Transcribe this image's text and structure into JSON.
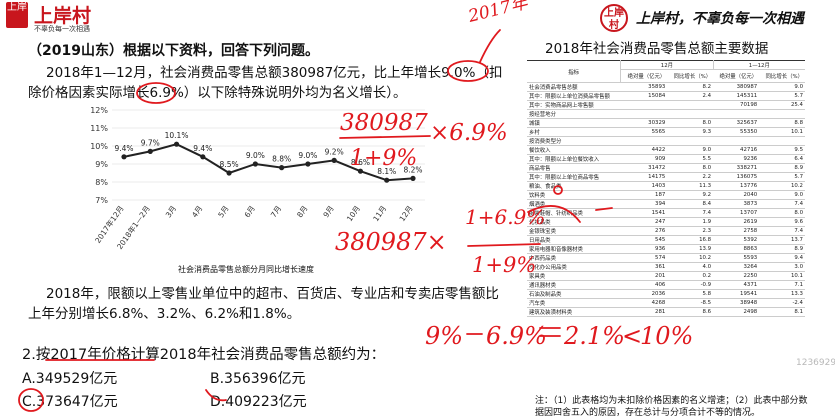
{
  "logo": {
    "box_text": "上岸",
    "name": "上岸村",
    "slogan": "不辜负每一次相遇"
  },
  "header": {
    "brand_box": "上岸村",
    "slogan": "上岸村，不辜负每一次相遇"
  },
  "question": {
    "source": "（2019山东）根据以下资料，回答下列问题。",
    "paragraph1_line1": "2018年1—12月，社会消费品零售总额380987亿元，比上年增长9.0%（扣",
    "paragraph1_line2": "除价格因素实际增长6.9%）以下除特殊说明外均为名义增长）。",
    "paragraph2_line1": "2018年，限额以上零售业单位中的超市、百货店、专业店和专卖店零售额比",
    "paragraph2_line2": "上年分别增长6.8%、3.2%、6.2%和1.8%。",
    "stem": "2.按2017年价格计算2018年社会消费品零售总额约为：",
    "options": [
      "A.349529亿元",
      "B.356396亿元",
      "C.373647亿元",
      "D.409223亿元"
    ]
  },
  "chart_data": {
    "type": "line",
    "title": "社会消费品零售总额分月同比增长速度",
    "categories": [
      "2017年12月",
      "2018年1—2月",
      "3月",
      "4月",
      "5月",
      "6月",
      "7月",
      "8月",
      "9月",
      "10月",
      "11月",
      "12月"
    ],
    "values": [
      9.4,
      9.7,
      10.1,
      9.4,
      8.5,
      9.0,
      8.8,
      9.0,
      9.2,
      8.6,
      8.1,
      8.2
    ],
    "data_labels": [
      "9.4%",
      "9.7%",
      "10.1%",
      "9.4%",
      "8.5%",
      "9.0%",
      "8.8%",
      "9.0%",
      "9.2%",
      "8.6%",
      "8.1%",
      "8.2%"
    ],
    "y_ticks": [
      "12%",
      "11%",
      "10%",
      "9%",
      "8%",
      "7%"
    ],
    "ylim": [
      7,
      12
    ],
    "xlabel": "",
    "ylabel": ""
  },
  "table": {
    "title": "2018年社会消费品零售总额主要数据",
    "header_dec": "12月",
    "header_full": "1—12月",
    "header_indicator": "指标",
    "subheaders": [
      "绝对量（亿元）",
      "同比增长（%）",
      "绝对量（亿元）",
      "同比增长（%）"
    ],
    "rows": [
      [
        "社会消费品零售总额",
        "35893",
        "8.2",
        "380987",
        "9.0"
      ],
      [
        "其中：限额以上单位消费品零售额",
        "15084",
        "2.4",
        "145311",
        "5.7"
      ],
      [
        "其中：实物商品网上零售额",
        "",
        "",
        "70198",
        "25.4"
      ],
      [
        "按经营地分",
        "",
        "",
        "",
        ""
      ],
      [
        "城镇",
        "30329",
        "8.0",
        "325637",
        "8.8"
      ],
      [
        "乡村",
        "5565",
        "9.3",
        "55350",
        "10.1"
      ],
      [
        "按消费类型分",
        "",
        "",
        "",
        ""
      ],
      [
        "餐饮收入",
        "4422",
        "9.0",
        "42716",
        "9.5"
      ],
      [
        "其中：限额以上单位餐饮收入",
        "909",
        "5.5",
        "9236",
        "6.4"
      ],
      [
        "商品零售",
        "31472",
        "8.0",
        "338271",
        "8.9"
      ],
      [
        "其中：限额以上单位商品零售",
        "14175",
        "2.2",
        "136075",
        "5.7"
      ],
      [
        "粮油、食品类",
        "1403",
        "11.3",
        "13776",
        "10.2"
      ],
      [
        "饮料类",
        "187",
        "9.2",
        "2040",
        "9.0"
      ],
      [
        "烟酒类",
        "394",
        "8.4",
        "3873",
        "7.4"
      ],
      [
        "服装鞋帽、针纺织品类",
        "1541",
        "7.4",
        "13707",
        "8.0"
      ],
      [
        "化妆品类",
        "247",
        "1.9",
        "2619",
        "9.6"
      ],
      [
        "金银珠宝类",
        "276",
        "2.3",
        "2758",
        "7.4"
      ],
      [
        "日用品类",
        "545",
        "16.8",
        "5392",
        "13.7"
      ],
      [
        "家用电器和音像器材类",
        "936",
        "13.9",
        "8863",
        "8.9"
      ],
      [
        "中西药品类",
        "574",
        "10.2",
        "5593",
        "9.4"
      ],
      [
        "文化办公用品类",
        "361",
        "4.0",
        "3264",
        "3.0"
      ],
      [
        "家具类",
        "201",
        "0.2",
        "2250",
        "10.1"
      ],
      [
        "通讯器材类",
        "406",
        "-0.9",
        "4371",
        "7.1"
      ],
      [
        "石油及制品类",
        "2036",
        "5.8",
        "19541",
        "13.3"
      ],
      [
        "汽车类",
        "4268",
        "-8.5",
        "38948",
        "-2.4"
      ],
      [
        "建筑及装潢材料类",
        "281",
        "8.6",
        "2498",
        "8.1"
      ]
    ],
    "note": "注：（1）此表格均为未扣除价格因素的名义增速；（2）此表中部分数",
    "note_line2": "据因四舍五入的原因，存在总计与分项合计不等的情况。"
  },
  "handwriting": {
    "year_label": "2017年",
    "line1_numerator": "380987",
    "line1_denominator": "1+9%",
    "line1_multiplier": "×6.9%",
    "line2_top": "1+6.9%",
    "line2_num": "380987×",
    "line2_den": "1+9%",
    "line3_a": "9%",
    "line3_b": "6.9%",
    "line3_c": "2.1%",
    "line3_rel": "<",
    "line3_d": "10%"
  },
  "watermark": "1236929"
}
